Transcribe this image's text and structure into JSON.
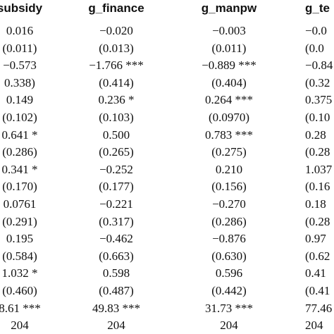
{
  "table": {
    "header": [
      "subsidy",
      "g_finance",
      "g_manpw",
      "g_te"
    ],
    "rows": [
      [
        "0.016",
        "−0.020",
        "−0.003",
        "−0.0"
      ],
      [
        "(0.011)",
        "(0.013)",
        "(0.011)",
        "(0.0"
      ],
      [
        "−0.573",
        "−1.766 ***",
        "−0.889 ***",
        "−0.84"
      ],
      [
        "0.338)",
        "(0.414)",
        "(0.404)",
        "(0.32"
      ],
      [
        "0.149",
        "0.236 *",
        "0.264 ***",
        "0.375"
      ],
      [
        "(0.102)",
        "(0.103)",
        "(0.0970)",
        "(0.10"
      ],
      [
        "0.641 *",
        "0.500",
        "0.783 ***",
        "0.28"
      ],
      [
        "(0.286)",
        "(0.265)",
        "(0.275)",
        "(0.28"
      ],
      [
        "0.341 *",
        "−0.252",
        "0.210",
        "1.037"
      ],
      [
        "(0.170)",
        "(0.177)",
        "(0.156)",
        "(0.16"
      ],
      [
        "0.0761",
        "−0.221",
        "−0.270",
        "0.18"
      ],
      [
        "(0.291)",
        "(0.317)",
        "(0.286)",
        "(0.28"
      ],
      [
        "0.195",
        "−0.462",
        "−0.876",
        "0.97"
      ],
      [
        "(0.584)",
        "(0.663)",
        "(0.630)",
        "(0.62"
      ],
      [
        "1.032 *",
        "0.598",
        "0.596",
        "0.41"
      ],
      [
        "(0.460)",
        "(0.487)",
        "(0.442)",
        "(0.41"
      ],
      [
        "8.61 ***",
        "49.83 ***",
        "31.73 ***",
        "77.46"
      ],
      [
        "204",
        "204",
        "204",
        "204"
      ]
    ]
  }
}
